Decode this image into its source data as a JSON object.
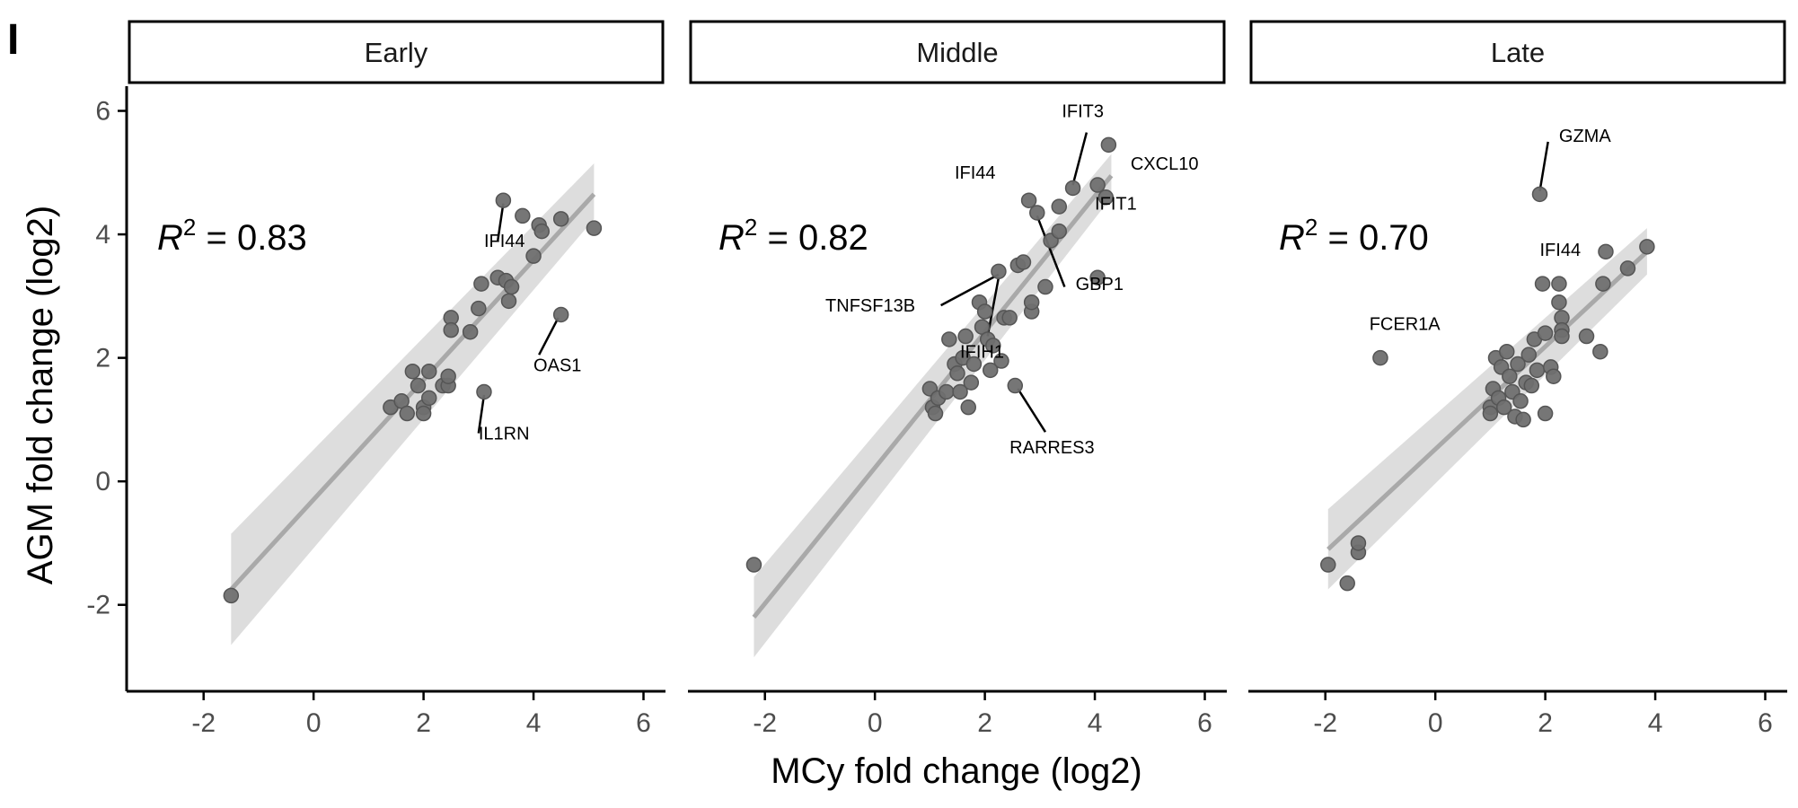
{
  "figure": {
    "panel_letter": "I",
    "xlabel": "MCy fold change (log2)",
    "ylabel": "AGM fold change (log2)"
  },
  "colors": {
    "point_fill": "#6f6f6f",
    "point_stroke": "#555555",
    "fit_line": "#a9a9a9",
    "ribbon": "#d9d9d9",
    "axis": "#000000",
    "tick_label": "#4d4d4d"
  },
  "chart_data": [
    {
      "type": "scatter",
      "title": "Early",
      "r2_value": "0.83",
      "xlim": [
        -3.4,
        6.4
      ],
      "ylim": [
        -3.4,
        6.4
      ],
      "x_ticks": [
        -2,
        0,
        2,
        4,
        6
      ],
      "y_ticks": [
        -2,
        0,
        2,
        4,
        6
      ],
      "fit": {
        "x": [
          -1.5,
          5.1
        ],
        "y": [
          -1.75,
          4.65
        ],
        "ci_low": [
          -2.65,
          4.25
        ],
        "ci_high": [
          -0.85,
          5.15
        ]
      },
      "points": [
        {
          "x": -1.5,
          "y": -1.85
        },
        {
          "x": 1.4,
          "y": 1.2
        },
        {
          "x": 1.6,
          "y": 1.3
        },
        {
          "x": 1.7,
          "y": 1.1
        },
        {
          "x": 1.8,
          "y": 1.78
        },
        {
          "x": 1.9,
          "y": 1.55
        },
        {
          "x": 2.0,
          "y": 1.2
        },
        {
          "x": 2.0,
          "y": 1.1
        },
        {
          "x": 2.1,
          "y": 1.35
        },
        {
          "x": 2.1,
          "y": 1.78
        },
        {
          "x": 2.35,
          "y": 1.55
        },
        {
          "x": 2.45,
          "y": 1.55
        },
        {
          "x": 2.45,
          "y": 1.7
        },
        {
          "x": 2.5,
          "y": 2.65
        },
        {
          "x": 2.5,
          "y": 2.45
        },
        {
          "x": 2.85,
          "y": 2.42
        },
        {
          "x": 3.0,
          "y": 2.8
        },
        {
          "x": 3.05,
          "y": 3.2
        },
        {
          "x": 3.1,
          "y": 1.45
        },
        {
          "x": 3.35,
          "y": 3.3
        },
        {
          "x": 3.45,
          "y": 4.55
        },
        {
          "x": 3.5,
          "y": 3.25
        },
        {
          "x": 3.55,
          "y": 2.92
        },
        {
          "x": 3.6,
          "y": 3.15
        },
        {
          "x": 3.8,
          "y": 4.3
        },
        {
          "x": 4.0,
          "y": 3.65
        },
        {
          "x": 4.1,
          "y": 4.15
        },
        {
          "x": 4.15,
          "y": 4.05
        },
        {
          "x": 4.5,
          "y": 4.25
        },
        {
          "x": 4.5,
          "y": 2.7
        },
        {
          "x": 5.1,
          "y": 4.1
        }
      ],
      "labels": [
        {
          "text": "IFI44",
          "x": 3.1,
          "y": 3.8,
          "px": 3.45,
          "py": 4.5,
          "lx": 3.35,
          "ly": 3.9
        },
        {
          "text": "OAS1",
          "x": 4.0,
          "y": 1.78,
          "px": 4.45,
          "py": 2.65,
          "lx": 4.1,
          "ly": 2.05
        },
        {
          "text": "IL1RN",
          "x": 3.0,
          "y": 0.68,
          "px": 3.1,
          "py": 1.4,
          "lx": 3.0,
          "ly": 0.78
        }
      ]
    },
    {
      "type": "scatter",
      "title": "Middle",
      "r2_value": "0.82",
      "xlim": [
        -3.4,
        6.4
      ],
      "ylim": [
        -3.4,
        6.4
      ],
      "x_ticks": [
        -2,
        0,
        2,
        4,
        6
      ],
      "y_ticks": [
        -2,
        0,
        2,
        4,
        6
      ],
      "fit": {
        "x": [
          -2.2,
          4.3
        ],
        "y": [
          -2.2,
          4.95
        ],
        "ci_low": [
          -2.85,
          4.6
        ],
        "ci_high": [
          -1.55,
          5.3
        ]
      },
      "points": [
        {
          "x": -2.2,
          "y": -1.35
        },
        {
          "x": 1.0,
          "y": 1.5
        },
        {
          "x": 1.05,
          "y": 1.2
        },
        {
          "x": 1.1,
          "y": 1.1
        },
        {
          "x": 1.15,
          "y": 1.35
        },
        {
          "x": 1.3,
          "y": 1.45
        },
        {
          "x": 1.35,
          "y": 2.3
        },
        {
          "x": 1.45,
          "y": 1.9
        },
        {
          "x": 1.5,
          "y": 1.75
        },
        {
          "x": 1.55,
          "y": 1.45
        },
        {
          "x": 1.6,
          "y": 2.0
        },
        {
          "x": 1.65,
          "y": 2.35
        },
        {
          "x": 1.7,
          "y": 1.2
        },
        {
          "x": 1.75,
          "y": 1.6
        },
        {
          "x": 1.8,
          "y": 1.9
        },
        {
          "x": 1.9,
          "y": 2.9
        },
        {
          "x": 1.95,
          "y": 2.5
        },
        {
          "x": 2.0,
          "y": 2.75
        },
        {
          "x": 2.05,
          "y": 2.3
        },
        {
          "x": 2.1,
          "y": 1.8
        },
        {
          "x": 2.15,
          "y": 2.2
        },
        {
          "x": 2.25,
          "y": 3.4
        },
        {
          "x": 2.3,
          "y": 1.95
        },
        {
          "x": 2.35,
          "y": 2.65
        },
        {
          "x": 2.45,
          "y": 2.65
        },
        {
          "x": 2.55,
          "y": 1.55
        },
        {
          "x": 2.6,
          "y": 3.5
        },
        {
          "x": 2.7,
          "y": 3.55
        },
        {
          "x": 2.8,
          "y": 4.55
        },
        {
          "x": 2.85,
          "y": 2.75
        },
        {
          "x": 2.85,
          "y": 2.9
        },
        {
          "x": 2.95,
          "y": 4.35
        },
        {
          "x": 3.1,
          "y": 3.15
        },
        {
          "x": 3.2,
          "y": 3.9
        },
        {
          "x": 3.35,
          "y": 4.05
        },
        {
          "x": 3.35,
          "y": 4.45
        },
        {
          "x": 3.6,
          "y": 4.75
        },
        {
          "x": 4.05,
          "y": 3.3
        },
        {
          "x": 4.05,
          "y": 4.8
        },
        {
          "x": 4.2,
          "y": 4.6
        },
        {
          "x": 4.25,
          "y": 5.45
        }
      ],
      "labels": [
        {
          "text": "IFIT3",
          "x": 3.4,
          "y": 5.9,
          "px": 3.6,
          "py": 4.8,
          "lx": 3.85,
          "ly": 5.65
        },
        {
          "text": "CXCL10",
          "x": 4.65,
          "y": 5.05
        },
        {
          "text": "IFI44",
          "x": 1.45,
          "y": 4.9
        },
        {
          "text": "IFIT1",
          "x": 4.0,
          "y": 4.4
        },
        {
          "text": "GBP1",
          "x": 3.65,
          "y": 3.1,
          "px": 2.95,
          "py": 4.3,
          "lx": 3.45,
          "ly": 3.15
        },
        {
          "text": "TNFSF13B",
          "x": -0.9,
          "y": 2.75,
          "px": 2.25,
          "py": 3.35,
          "lx": 1.2,
          "ly": 2.85
        },
        {
          "text": "IFIH1",
          "x": 1.55,
          "y": 2.0,
          "px": 2.25,
          "py": 3.3,
          "lx": 2.05,
          "ly": 2.35
        },
        {
          "text": "RARRES3",
          "x": 2.45,
          "y": 0.45,
          "px": 2.6,
          "py": 1.5,
          "lx": 3.1,
          "ly": 0.8
        }
      ]
    },
    {
      "type": "scatter",
      "title": "Late",
      "r2_value": "0.70",
      "xlim": [
        -3.4,
        6.4
      ],
      "ylim": [
        -3.4,
        6.4
      ],
      "x_ticks": [
        -2,
        0,
        2,
        4,
        6
      ],
      "y_ticks": [
        -2,
        0,
        2,
        4,
        6
      ],
      "fit": {
        "x": [
          -1.95,
          3.85
        ],
        "y": [
          -1.1,
          3.72
        ],
        "ci_low": [
          -1.75,
          3.35
        ],
        "ci_high": [
          -0.45,
          4.1
        ]
      },
      "points": [
        {
          "x": -1.95,
          "y": -1.35
        },
        {
          "x": -1.6,
          "y": -1.65
        },
        {
          "x": -1.4,
          "y": -1.15
        },
        {
          "x": -1.4,
          "y": -1.0
        },
        {
          "x": -1.0,
          "y": 2.0
        },
        {
          "x": 1.0,
          "y": 1.2
        },
        {
          "x": 1.0,
          "y": 1.1
        },
        {
          "x": 1.05,
          "y": 1.5
        },
        {
          "x": 1.1,
          "y": 2.0
        },
        {
          "x": 1.15,
          "y": 1.35
        },
        {
          "x": 1.2,
          "y": 1.85
        },
        {
          "x": 1.25,
          "y": 1.2
        },
        {
          "x": 1.3,
          "y": 2.1
        },
        {
          "x": 1.35,
          "y": 1.7
        },
        {
          "x": 1.4,
          "y": 1.45
        },
        {
          "x": 1.45,
          "y": 1.05
        },
        {
          "x": 1.5,
          "y": 1.9
        },
        {
          "x": 1.55,
          "y": 1.3
        },
        {
          "x": 1.6,
          "y": 1.0
        },
        {
          "x": 1.65,
          "y": 1.6
        },
        {
          "x": 1.7,
          "y": 2.05
        },
        {
          "x": 1.75,
          "y": 1.55
        },
        {
          "x": 1.8,
          "y": 2.3
        },
        {
          "x": 1.85,
          "y": 1.8
        },
        {
          "x": 1.9,
          "y": 4.65
        },
        {
          "x": 1.95,
          "y": 3.2
        },
        {
          "x": 2.0,
          "y": 2.4
        },
        {
          "x": 2.0,
          "y": 1.1
        },
        {
          "x": 2.1,
          "y": 1.85
        },
        {
          "x": 2.15,
          "y": 1.7
        },
        {
          "x": 2.25,
          "y": 3.2
        },
        {
          "x": 2.25,
          "y": 2.9
        },
        {
          "x": 2.3,
          "y": 2.65
        },
        {
          "x": 2.3,
          "y": 2.45
        },
        {
          "x": 2.3,
          "y": 2.35
        },
        {
          "x": 2.75,
          "y": 2.35
        },
        {
          "x": 3.0,
          "y": 2.1
        },
        {
          "x": 3.05,
          "y": 3.2
        },
        {
          "x": 3.1,
          "y": 3.72
        },
        {
          "x": 3.5,
          "y": 3.45
        },
        {
          "x": 3.85,
          "y": 3.8
        }
      ],
      "labels": [
        {
          "text": "GZMA",
          "x": 2.25,
          "y": 5.5,
          "px": 1.9,
          "py": 4.7,
          "lx": 2.05,
          "ly": 5.5
        },
        {
          "text": "IFI44",
          "x": 1.9,
          "y": 3.65
        },
        {
          "text": "FCER1A",
          "x": -1.2,
          "y": 2.45
        }
      ]
    }
  ]
}
